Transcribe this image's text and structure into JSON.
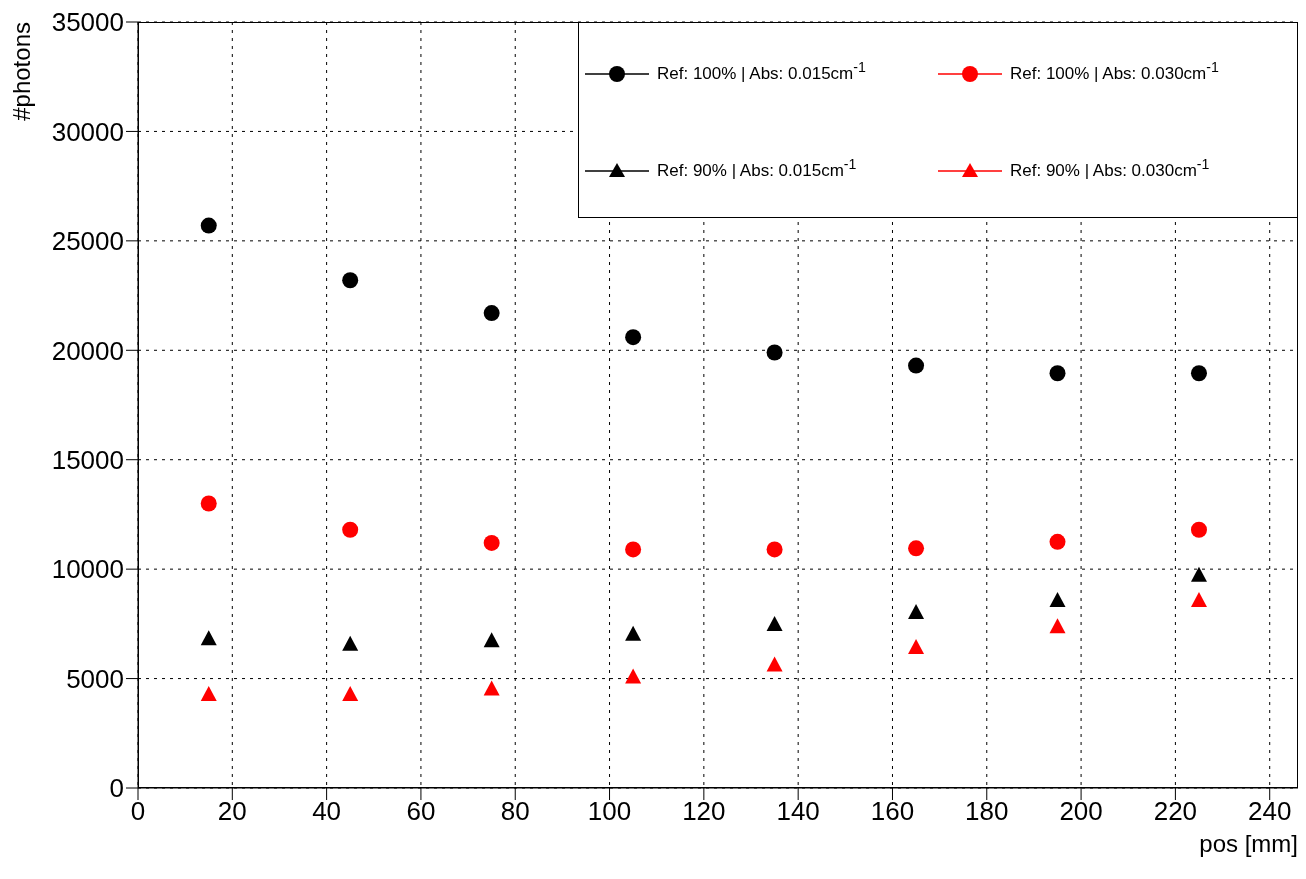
{
  "chart_data": {
    "type": "scatter",
    "xlabel": "pos [mm]",
    "ylabel": "#photons",
    "x": [
      15,
      45,
      75,
      105,
      135,
      165,
      195,
      225
    ],
    "series": [
      {
        "name": "Ref: 100% | Abs: 0.015cm$^{-1}$",
        "color": "#000000",
        "marker": "circle",
        "values": [
          25700,
          23200,
          21700,
          20600,
          19900,
          19300,
          18950,
          18950
        ]
      },
      {
        "name": "Ref: 100% | Abs: 0.030cm$^{-1}$",
        "color": "#ff0000",
        "marker": "circle",
        "values": [
          13000,
          11800,
          11200,
          10900,
          10900,
          10950,
          11250,
          11800
        ]
      },
      {
        "name": "Ref: 90% | Abs: 0.015cm$^{-1}$",
        "color": "#000000",
        "marker": "triangle",
        "values": [
          6800,
          6550,
          6700,
          7000,
          7450,
          8000,
          8550,
          9700
        ]
      },
      {
        "name": "Ref: 90% | Abs: 0.030cm$^{-1}$",
        "color": "#ff0000",
        "marker": "triangle",
        "values": [
          4250,
          4250,
          4500,
          5050,
          5600,
          6400,
          7350,
          8550
        ]
      }
    ],
    "xlim": [
      0,
      246
    ],
    "xticks": [
      0,
      20,
      40,
      60,
      80,
      100,
      120,
      140,
      160,
      180,
      200,
      220,
      240
    ],
    "ylim": [
      0,
      35000
    ],
    "yticks": [
      0,
      5000,
      10000,
      15000,
      20000,
      25000,
      30000,
      35000
    ],
    "grid": true,
    "legend": "top right"
  }
}
